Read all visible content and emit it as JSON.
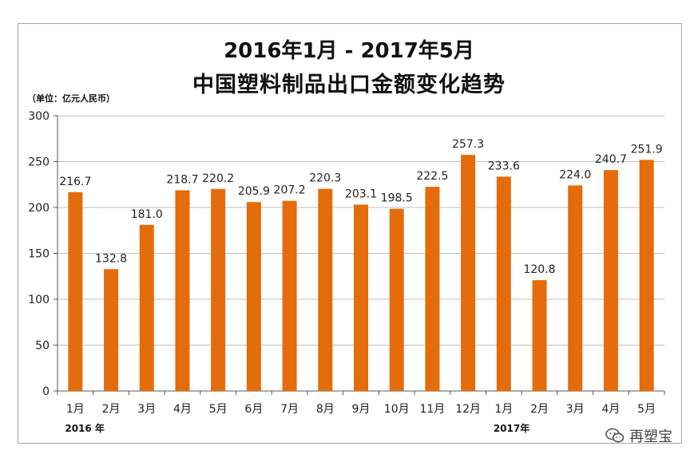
{
  "chart_data": {
    "type": "bar",
    "title": "2016年1月 - 2017年5月",
    "subtitle": "中国塑料制品出口金额变化趋势",
    "unit_label": "（单位：亿元人民币）",
    "ylim": [
      0,
      300
    ],
    "yticks": [
      0,
      50,
      100,
      150,
      200,
      250,
      300
    ],
    "grid": true,
    "categories": [
      "1月",
      "2月",
      "3月",
      "4月",
      "5月",
      "6月",
      "7月",
      "8月",
      "9月",
      "10月",
      "11月",
      "12月",
      "1月",
      "2月",
      "3月",
      "4月",
      "5月"
    ],
    "values": [
      216.7,
      132.8,
      181.0,
      218.7,
      220.2,
      205.9,
      207.2,
      220.3,
      203.1,
      198.5,
      222.5,
      257.3,
      233.6,
      120.8,
      224.0,
      240.7,
      251.9
    ],
    "value_labels": [
      "216.7",
      "132.8",
      "181.0",
      "218.7",
      "220.2",
      "205.9",
      "207.2",
      "220.3",
      "203.1",
      "198.5",
      "222.5",
      "257.3",
      "233.6",
      "120.8",
      "224.0",
      "240.7",
      "251.9"
    ],
    "year_labels": [
      {
        "text": "2016 年",
        "category_index": 0
      },
      {
        "text": "2017年",
        "category_index": 12
      }
    ],
    "bar_color": "#e46c0a"
  },
  "watermark": {
    "text": "再塑宝",
    "icon": "wechat-icon"
  }
}
